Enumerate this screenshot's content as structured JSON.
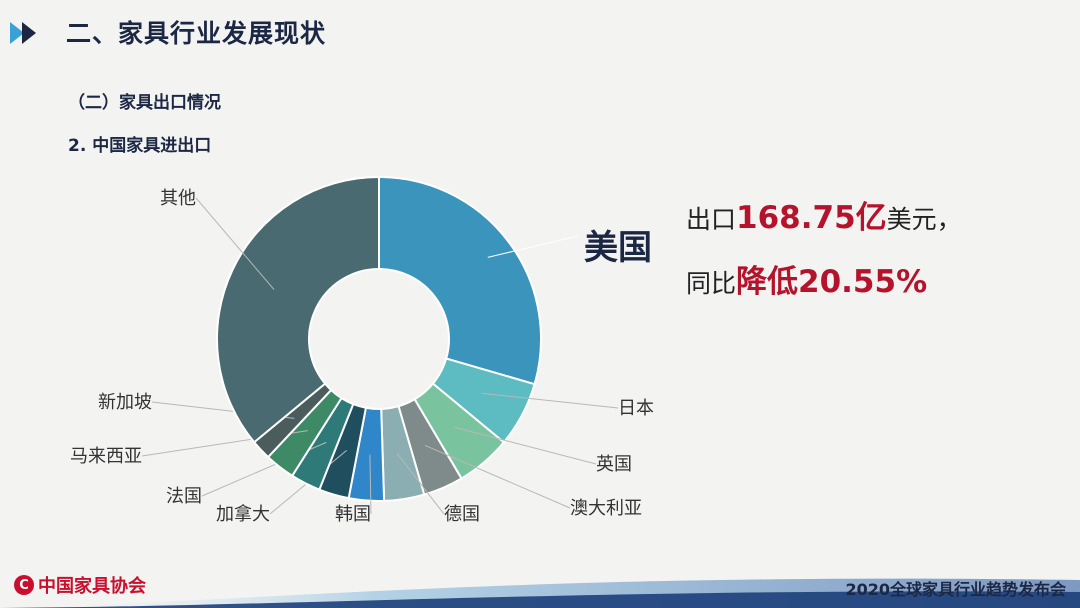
{
  "header": {
    "title": "二、家具行业发展现状",
    "section": "（二）家具出口情况",
    "subsection": "2. 中国家具进出口"
  },
  "callout": {
    "country": "美国",
    "export_prefix": "出口",
    "export_value": "168.75亿",
    "export_suffix": "美元，",
    "change_prefix": "同比",
    "change_value": "降低20.55%"
  },
  "footer": {
    "logo_text": "中国家具协会",
    "event": "2020全球家具行业趋势发布会"
  },
  "colors": {
    "title": "#1c2744",
    "highlight": "#b5122b",
    "logo": "#c8102e"
  },
  "chart_data": {
    "type": "pie",
    "style": "donut",
    "labels": [
      "美国",
      "日本",
      "英国",
      "澳大利亚",
      "德国",
      "韩国",
      "加拿大",
      "法国",
      "马来西亚",
      "新加坡",
      "其他"
    ],
    "values": [
      29.5,
      6.5,
      5.5,
      4.0,
      4.0,
      3.5,
      3.0,
      3.0,
      3.0,
      2.0,
      36.0
    ],
    "colors": [
      "#3a94bb",
      "#5cbcc2",
      "#79c49e",
      "#7f8a8a",
      "#8aaeb2",
      "#2f86c8",
      "#1f4f5f",
      "#2d7a78",
      "#3e8a66",
      "#4a5c5c",
      "#4a6a72"
    ],
    "legend": "none"
  }
}
